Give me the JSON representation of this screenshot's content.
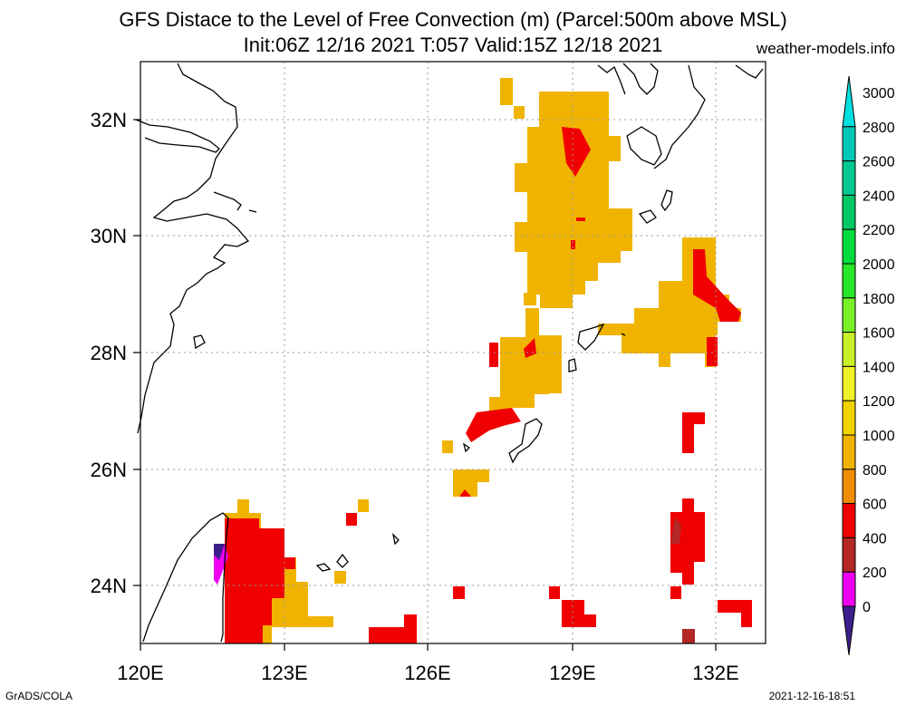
{
  "title": {
    "line1": "GFS Distace to the Level of Free Convection (m) (Parcel:500m above MSL)",
    "line2": "Init:06Z 12/16 2021 T:057 Valid:15Z 12/18 2021",
    "site": "weather-models.info"
  },
  "axes": {
    "x_ticks": [
      "120E",
      "123E",
      "126E",
      "129E",
      "132E"
    ],
    "y_ticks": [
      "24N",
      "26N",
      "28N",
      "30N",
      "32N"
    ]
  },
  "colorbar": {
    "labels": [
      "3000",
      "2800",
      "2600",
      "2400",
      "2200",
      "2000",
      "1800",
      "1600",
      "1400",
      "1200",
      "1000",
      "800",
      "600",
      "400",
      "200",
      "0"
    ],
    "colors": [
      "#00e0e0",
      "#00c8b4",
      "#00c890",
      "#00c864",
      "#00dc3c",
      "#28e628",
      "#78f028",
      "#c8f028",
      "#f0f028",
      "#f0d200",
      "#f0b400",
      "#f08c00",
      "#f00000",
      "#b42828",
      "#f000f0",
      "#3c1e8c"
    ]
  },
  "footer": {
    "left": "GrADS/COLA",
    "right": "2021-12-16-18:51"
  }
}
